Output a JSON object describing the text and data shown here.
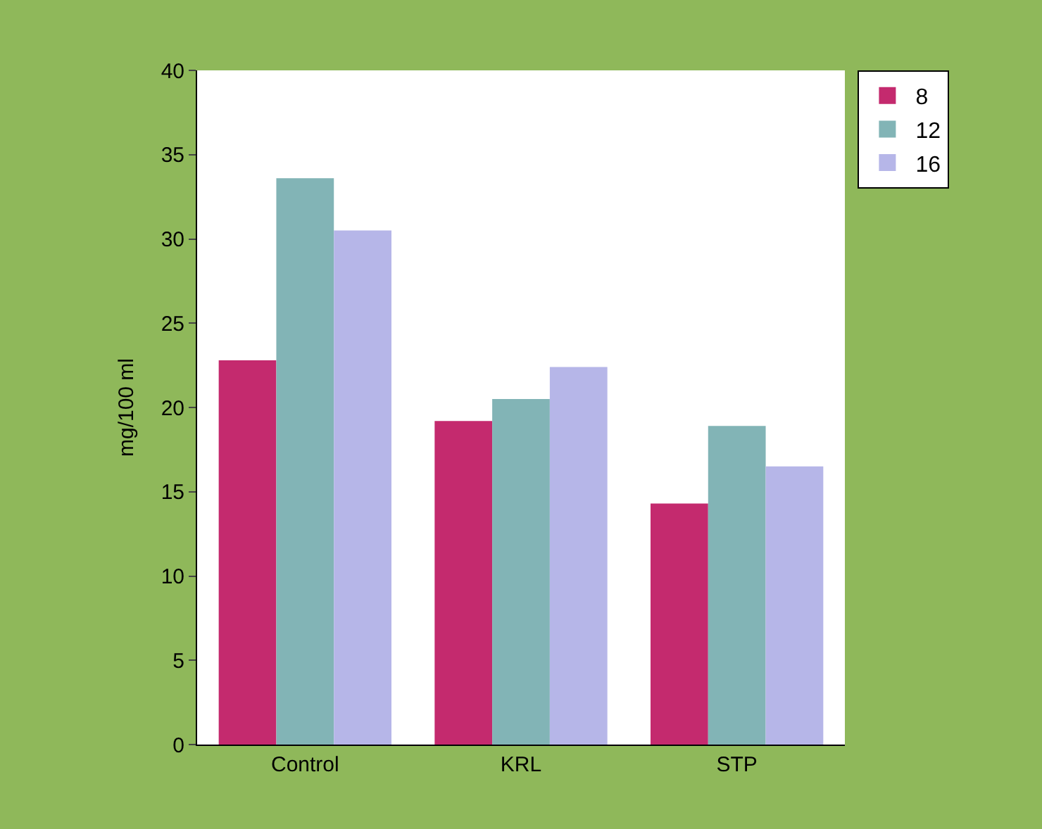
{
  "chart_data": {
    "type": "bar",
    "ylabel": "mg/100 ml",
    "categories": [
      "Control",
      "KRL",
      "STP"
    ],
    "series": [
      {
        "name": "8",
        "color": "#c42a6e",
        "values": [
          22.8,
          19.2,
          14.3
        ]
      },
      {
        "name": "12",
        "color": "#82b4b6",
        "values": [
          33.6,
          20.5,
          18.9
        ]
      },
      {
        "name": "16",
        "color": "#b6b6e8",
        "values": [
          30.5,
          22.4,
          16.5
        ]
      }
    ],
    "ylim": [
      0,
      40
    ],
    "yticks": [
      0,
      5,
      10,
      15,
      20,
      25,
      30,
      35,
      40
    ],
    "legend": "top right"
  }
}
